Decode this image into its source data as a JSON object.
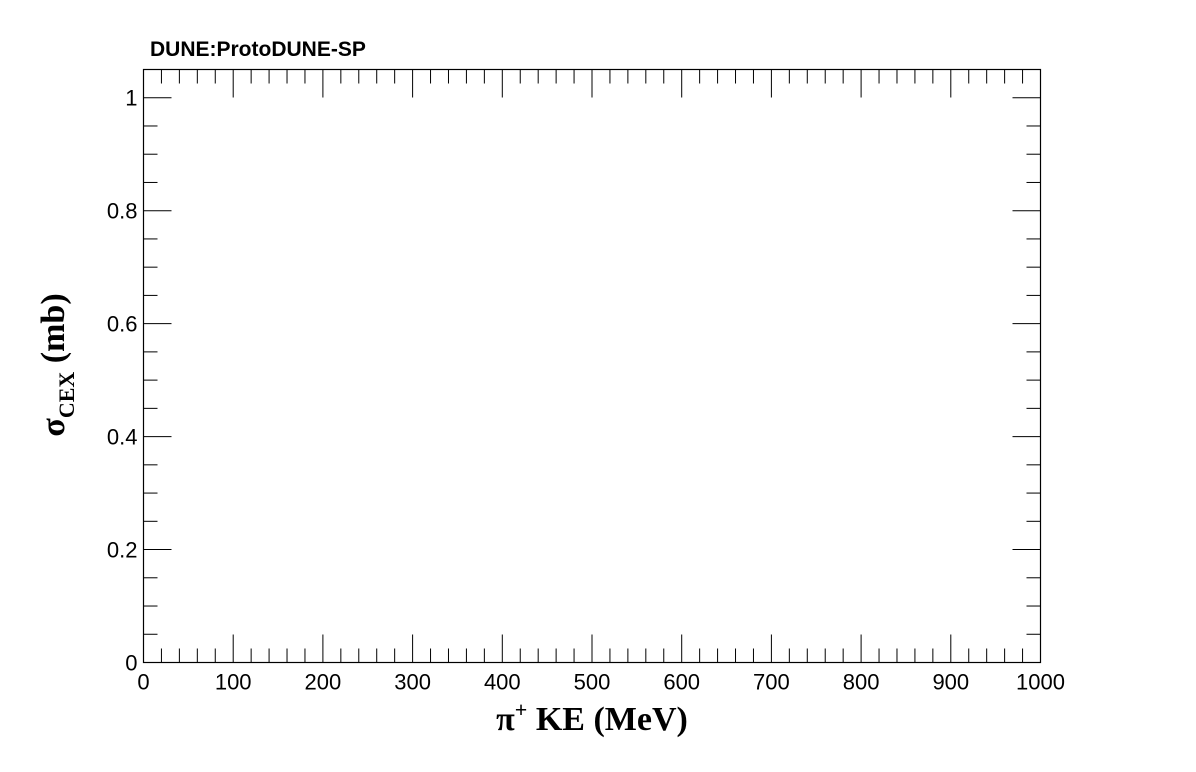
{
  "chart_data": {
    "type": "scatter",
    "title": "DUNE:ProtoDUNE-SP",
    "xlabel": {
      "base": "π",
      "superscript": "+",
      "rest": " KE (MeV)"
    },
    "ylabel": {
      "base": "σ",
      "subscript": "CEX",
      "rest": " (mb)"
    },
    "xlim": [
      0,
      1000
    ],
    "ylim": [
      0,
      1.05
    ],
    "x_major_ticks": [
      0,
      100,
      200,
      300,
      400,
      500,
      600,
      700,
      800,
      900,
      1000
    ],
    "x_tick_labels": [
      "0",
      "100",
      "200",
      "300",
      "400",
      "500",
      "600",
      "700",
      "800",
      "900",
      "1000"
    ],
    "x_minor_step": 20,
    "y_major_ticks": [
      0,
      0.2,
      0.4,
      0.6,
      0.8,
      1
    ],
    "y_tick_labels": [
      "0",
      "0.2",
      "0.4",
      "0.6",
      "0.8",
      "1"
    ],
    "y_minor_step": 0.05,
    "series": [],
    "grid": false,
    "legend": "none",
    "colors": {
      "axis": "#000000",
      "background": "#ffffff"
    }
  }
}
